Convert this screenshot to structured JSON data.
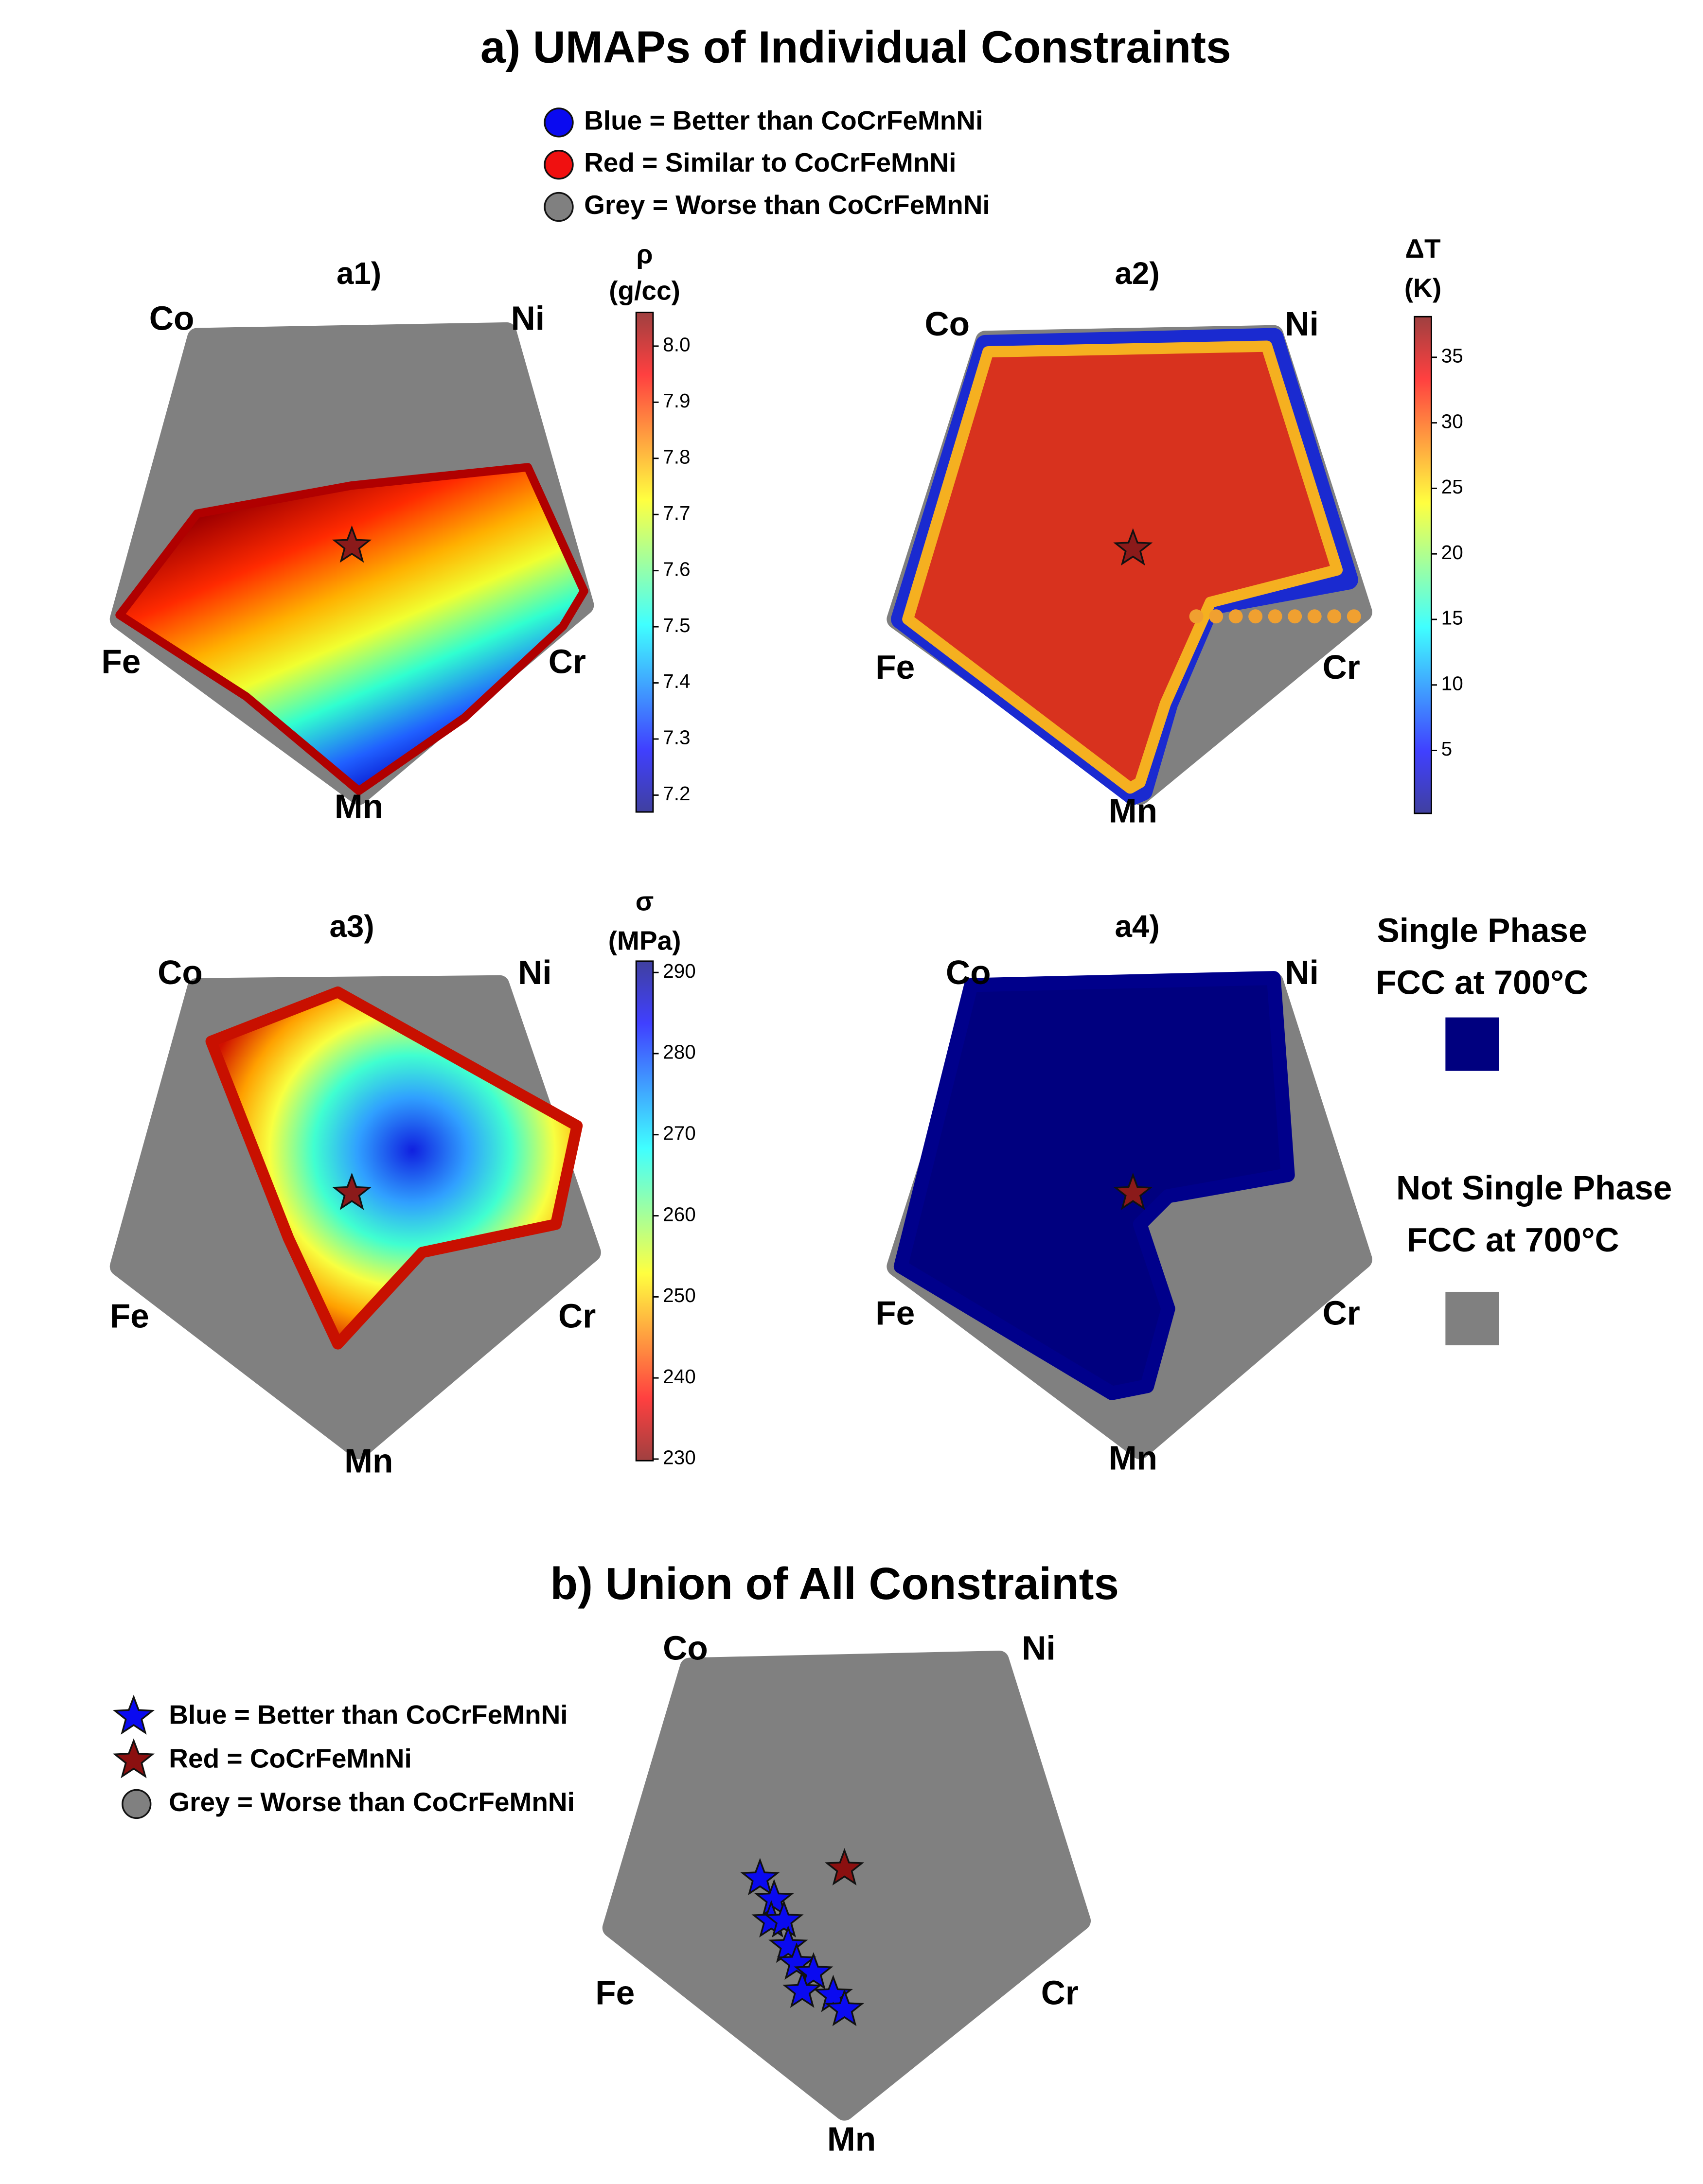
{
  "title": "a) UMAPs of Individual Constraints",
  "legend": [
    {
      "label": "Blue = Better than CoCrFeMnNi",
      "color": "#0a0af0"
    },
    {
      "label": "Red = Similar to CoCrFeMnNi",
      "color": "#f01010"
    },
    {
      "label": "Grey = Worse than CoCrFeMnNi",
      "color": "#808080"
    }
  ],
  "panels": [
    {
      "label": "a1)",
      "vertices": [
        "Co",
        "Ni",
        "Fe",
        "Cr",
        "Mn"
      ],
      "colorbar": {
        "title": "ρ",
        "unit": "(g/cc)",
        "lim": [
          7.17,
          8.06
        ],
        "ticks": [
          7.2,
          7.3,
          7.4,
          7.5,
          7.6,
          7.7,
          7.8,
          7.9,
          {
            "value": 8,
            "label": "8.0"
          }
        ],
        "colormap": "jet"
      }
    },
    {
      "label": "a2)",
      "vertices": [
        "Co",
        "Ni",
        "Fe",
        "Cr",
        "Mn"
      ],
      "colorbar": {
        "title": "ΔT",
        "unit": "(K)",
        "lim": [
          0.2,
          38.1
        ],
        "ticks": [
          5,
          10,
          15,
          20,
          25,
          30,
          35
        ],
        "colormap": "jet"
      }
    },
    {
      "label": "a3)",
      "vertices": [
        "Co",
        "Ni",
        "Fe",
        "Cr",
        "Mn"
      ],
      "colorbar": {
        "title": "σ",
        "unit": "(MPa)",
        "lim": [
          229.8,
          291.4
        ],
        "ticks": [
          230,
          240,
          250,
          260,
          270,
          280,
          290
        ],
        "colormap": "jet_r"
      }
    },
    {
      "label": "a4)",
      "vertices": [
        "Co",
        "Ni",
        "Fe",
        "Cr",
        "Mn"
      ],
      "phase_legend": [
        {
          "label": [
            "Single Phase",
            "FCC at 700°C"
          ],
          "color": "#00007f"
        },
        {
          "label": [
            "Not Single Phase",
            "FCC at 700°C"
          ],
          "color": "#808080"
        }
      ]
    }
  ],
  "union": {
    "title": "b) Union of All Constraints",
    "vertices": [
      "Co",
      "Ni",
      "Fe",
      "Cr",
      "Mn"
    ],
    "legend": [
      {
        "label": "Blue = Better than CoCrFeMnNi",
        "color": "#0a0af0"
      },
      {
        "label": "Red = CoCrFeMnNi",
        "color": "#8b1010"
      },
      {
        "label": "Grey = Worse than CoCrFeMnNi",
        "color": "#808080"
      }
    ]
  }
}
